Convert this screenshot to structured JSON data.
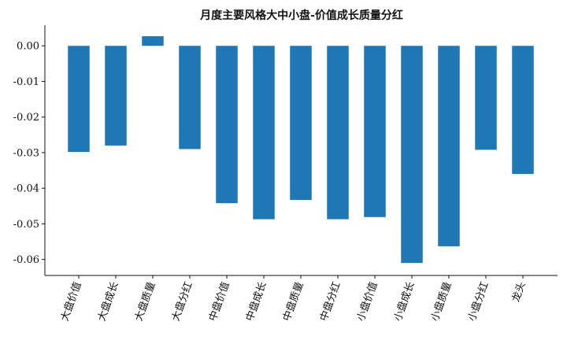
{
  "chart_data": {
    "type": "bar",
    "title": "月度主要风格大中小盘-价值成长质量分红",
    "xlabel": "",
    "ylabel": "",
    "categories": [
      "大盘价值",
      "大盘成长",
      "大盘质量",
      "大盘分红",
      "中盘价值",
      "中盘成长",
      "中盘质量",
      "中盘分红",
      "小盘价值",
      "小盘成长",
      "小盘质量",
      "小盘分红",
      "龙头"
    ],
    "values": [
      -0.0298,
      -0.028,
      0.0027,
      -0.029,
      -0.0442,
      -0.0487,
      -0.0433,
      -0.0487,
      -0.0481,
      -0.061,
      -0.0563,
      -0.0292,
      -0.036
    ],
    "ylim": [
      -0.0645,
      0.0058
    ],
    "yticks": [
      0.0,
      -0.01,
      -0.02,
      -0.03,
      -0.04,
      -0.05,
      -0.06
    ],
    "ytick_labels": [
      "0.00",
      "-0.01",
      "-0.02",
      "-0.03",
      "-0.04",
      "-0.05",
      "-0.06"
    ],
    "grid": false,
    "color": "#1f77b4"
  }
}
